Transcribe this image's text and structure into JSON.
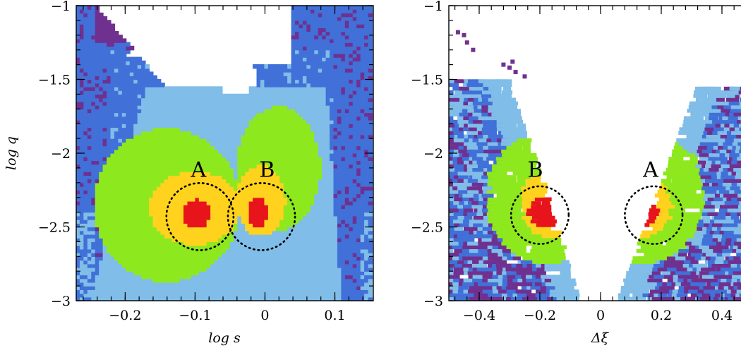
{
  "palette": {
    "red": "#e8141c",
    "yellow": "#ffd21e",
    "green": "#8ee81e",
    "light_blue": "#80bde8",
    "blue": "#4070d8",
    "purple": "#703090"
  },
  "chart_data": [
    {
      "type": "heatmap",
      "xlabel": "log s",
      "ylabel": "log q",
      "xlim": [
        -0.27,
        0.155
      ],
      "ylim": [
        -3.0,
        -1.0
      ],
      "x_ticks": [
        -0.2,
        -0.1,
        0,
        0.1
      ],
      "x_tick_labels": [
        "−0.2",
        "−0.1",
        "0",
        "0.1"
      ],
      "y_ticks": [
        -3,
        -2.5,
        -2,
        -1.5,
        -1
      ],
      "y_tick_labels": [
        "−3",
        "−2.5",
        "−2",
        "−1.5",
        "−1"
      ],
      "annotations": [
        {
          "text": "A",
          "x": -0.095,
          "y": -2.16,
          "circle_center": [
            -0.093,
            -2.43
          ],
          "circle_radius": 0.048
        },
        {
          "text": "B",
          "x": 0.003,
          "y": -2.16,
          "circle_center": [
            -0.005,
            -2.43
          ],
          "circle_radius": 0.048
        }
      ]
    },
    {
      "type": "heatmap",
      "xlabel": "Δξ",
      "ylabel": "",
      "xlim": [
        -0.5,
        0.5
      ],
      "ylim": [
        -3.0,
        -1.0
      ],
      "x_ticks": [
        -0.4,
        -0.2,
        0,
        0.2,
        0.4
      ],
      "x_tick_labels": [
        "−0.4",
        "−0.2",
        "0",
        "0.2",
        "0.4"
      ],
      "y_ticks": [
        -3,
        -2.5,
        -2,
        -1.5,
        -1
      ],
      "y_tick_labels": [
        "−3",
        "−2.5",
        "−2",
        "−1.5",
        "−1"
      ],
      "annotations": [
        {
          "text": "B",
          "x": -0.215,
          "y": -2.16,
          "circle_center": [
            -0.2,
            -2.42
          ],
          "circle_radius": 0.095
        },
        {
          "text": "A",
          "x": 0.165,
          "y": -2.16,
          "circle_center": [
            0.175,
            -2.42
          ],
          "circle_radius": 0.095
        }
      ]
    }
  ]
}
